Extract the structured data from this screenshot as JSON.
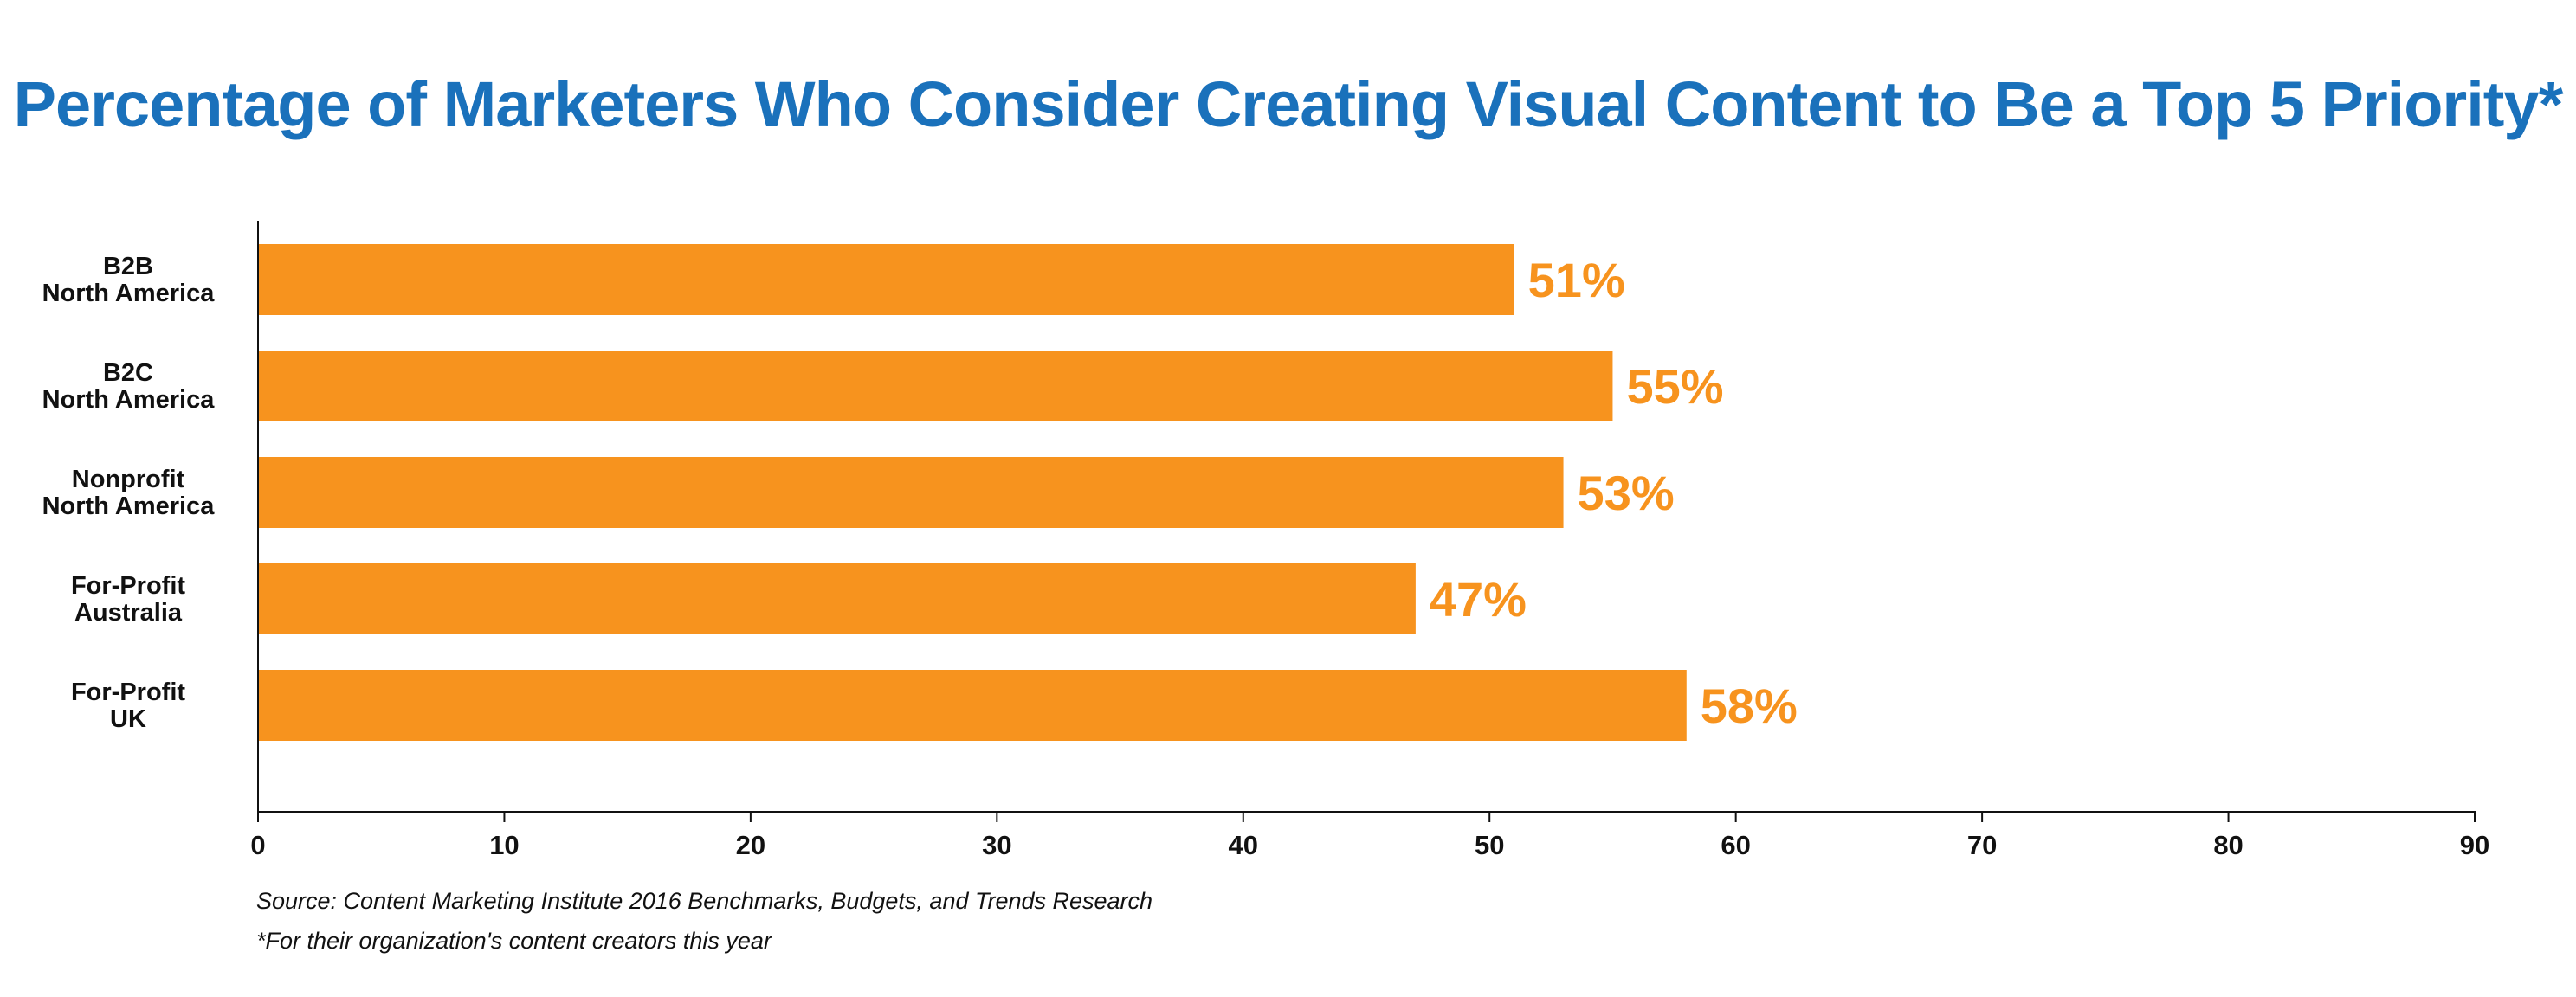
{
  "chart_data": {
    "type": "bar",
    "orientation": "horizontal",
    "title": "Percentage of Marketers Who Consider Creating Visual Content to Be a Top 5 Priority*",
    "categories": [
      [
        "B2B",
        "North America"
      ],
      [
        "B2C",
        "North America"
      ],
      [
        "Nonprofit",
        "North America"
      ],
      [
        "For-Profit",
        "Australia"
      ],
      [
        "For-Profit",
        "UK"
      ]
    ],
    "values": [
      51,
      55,
      53,
      47,
      58
    ],
    "value_labels": [
      "51%",
      "55%",
      "53%",
      "47%",
      "58%"
    ],
    "xlim": [
      0,
      90
    ],
    "x_ticks": [
      0,
      10,
      20,
      30,
      40,
      50,
      60,
      70,
      80,
      90
    ],
    "xlabel": "",
    "ylabel": "",
    "grid": false,
    "legend": "none",
    "bar_color": "#f7931e",
    "value_label_color": "#f7931e"
  },
  "footnotes": {
    "source": "Source: Content Marketing Institute 2016 Benchmarks, Budgets, and Trends Research",
    "asterisk": "*For their organization's content creators this year"
  },
  "colors": {
    "title": "#1a71bb",
    "axis": "#111111",
    "text": "#111111"
  }
}
